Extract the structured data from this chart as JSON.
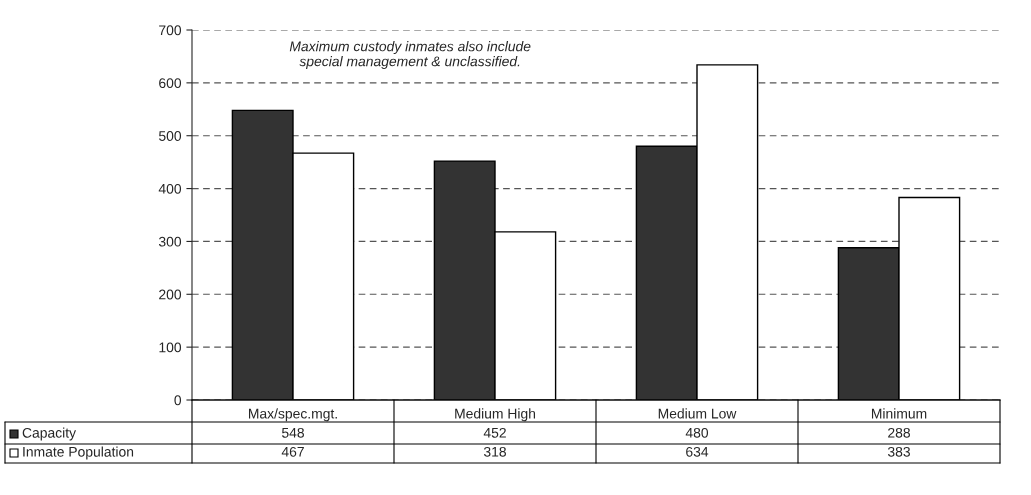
{
  "chart_data": {
    "type": "bar",
    "categories": [
      "Max/spec.mgt.",
      "Medium High",
      "Medium Low",
      "Minimum"
    ],
    "series": [
      {
        "name": "Capacity",
        "color": "#333333",
        "values": [
          548,
          452,
          480,
          288
        ]
      },
      {
        "name": "Inmate Population",
        "color": "#ffffff",
        "values": [
          467,
          318,
          634,
          383
        ]
      }
    ],
    "ylim": [
      0,
      700
    ],
    "yticks": [
      0,
      100,
      200,
      300,
      400,
      500,
      600,
      700
    ],
    "grid": "y",
    "data_labels": true,
    "legend": "bottom left",
    "annotations": [
      "Maximum custody inmates also include\nspecial management & unclassified."
    ]
  }
}
